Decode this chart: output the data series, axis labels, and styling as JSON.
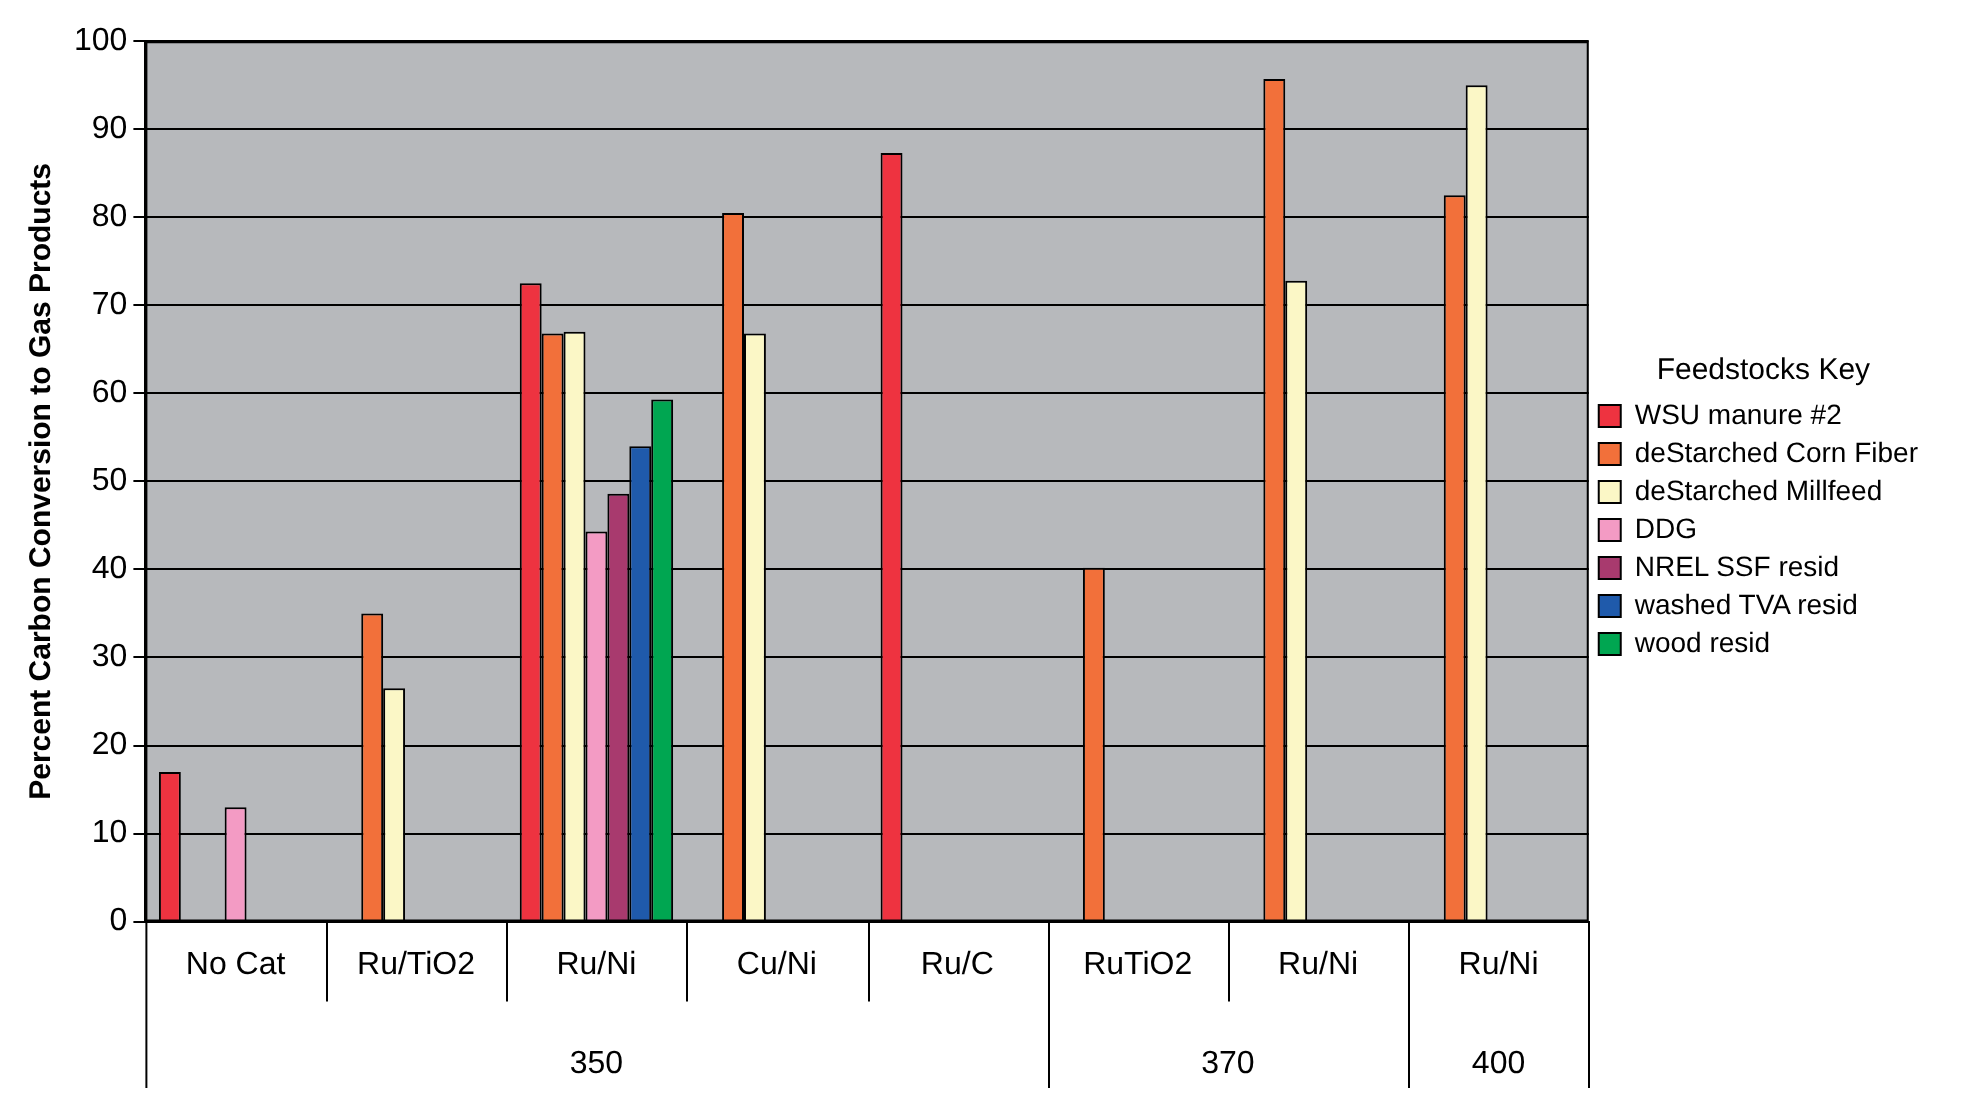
{
  "chart_data": {
    "type": "bar",
    "ylabel": "Percent Carbon Conversion to Gas Products",
    "legend_title": "Feedstocks Key",
    "categories": [
      "No Cat",
      "Ru/TiO2",
      "Ru/Ni",
      "Cu/Ni",
      "Ru/C",
      "RuTiO2",
      "Ru/Ni",
      "Ru/Ni"
    ],
    "series": [
      {
        "name": "WSU manure #2",
        "color": "#ee3340",
        "values": [
          17,
          null,
          72.5,
          null,
          87.3,
          null,
          null,
          null
        ]
      },
      {
        "name": "deStarched Corn Fiber",
        "color": "#f2703a",
        "values": [
          null,
          35,
          66.8,
          80.5,
          null,
          40.2,
          95.7,
          82.5
        ]
      },
      {
        "name": "deStarched Millfeed",
        "color": "#fbf7c6",
        "values": [
          null,
          26.5,
          67,
          66.8,
          null,
          null,
          72.8,
          95
        ]
      },
      {
        "name": "DDG",
        "color": "#f39bc4",
        "values": [
          13,
          null,
          44.3,
          null,
          null,
          null,
          null,
          null
        ]
      },
      {
        "name": "NREL SSF resid",
        "color": "#a83a6e",
        "values": [
          null,
          null,
          48.6,
          null,
          null,
          null,
          null,
          null
        ]
      },
      {
        "name": "washed TVA resid",
        "color": "#1f5aab",
        "values": [
          null,
          null,
          54,
          null,
          null,
          null,
          null,
          null
        ]
      },
      {
        "name": "wood resid",
        "color": "#00a651",
        "values": [
          null,
          null,
          59.3,
          null,
          null,
          null,
          null,
          null
        ]
      }
    ],
    "annotations": [
      "350",
      "370",
      "400"
    ],
    "ylim": [
      0,
      100
    ],
    "yticks": [
      0,
      10,
      20,
      30,
      40,
      50,
      60,
      70,
      80,
      90,
      100
    ],
    "grid": "y",
    "legend": "right"
  }
}
